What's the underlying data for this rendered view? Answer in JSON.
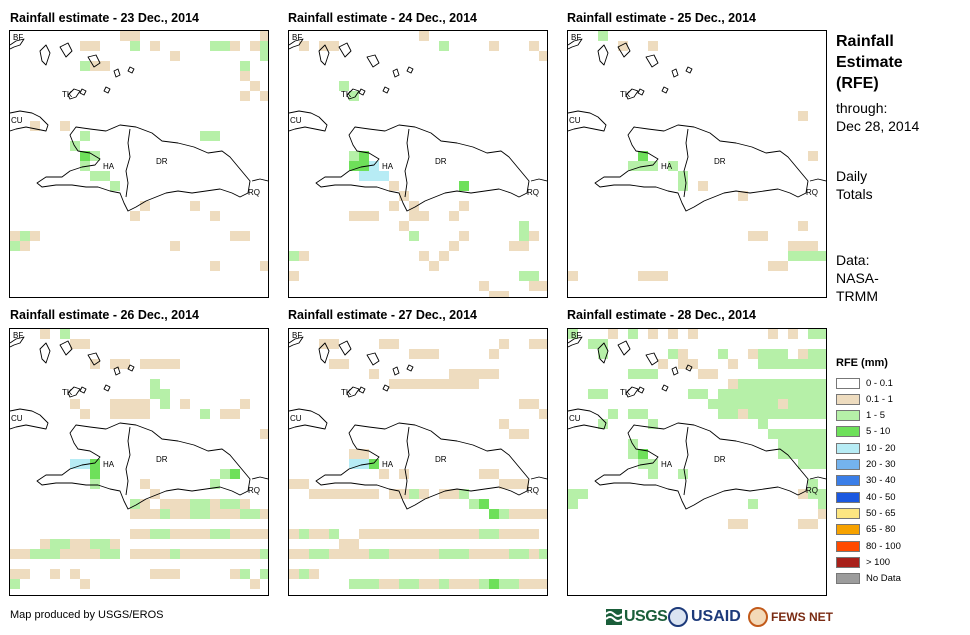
{
  "panels": [
    {
      "title": "Rainfall estimate - 23 Dec., 2014"
    },
    {
      "title": "Rainfall estimate - 24 Dec., 2014"
    },
    {
      "title": "Rainfall estimate - 25 Dec., 2014"
    },
    {
      "title": "Rainfall estimate - 26 Dec., 2014"
    },
    {
      "title": "Rainfall estimate - 27 Dec., 2014"
    },
    {
      "title": "Rainfall estimate - 28 Dec., 2014"
    }
  ],
  "map_labels": {
    "bf": "BF",
    "tk": "TK",
    "cu": "CU",
    "ha": "HA",
    "dr": "DR",
    "rq": "RQ"
  },
  "side": {
    "title_lines": [
      "Rainfall",
      "Estimate",
      "(RFE)"
    ],
    "through_lines": [
      "through:",
      "Dec 28, 2014"
    ],
    "daily_lines": [
      "Daily",
      "Totals"
    ],
    "data_lines": [
      "Data:",
      "NASA-",
      "TRMM"
    ]
  },
  "legend": {
    "title": "RFE (mm)",
    "items": [
      {
        "label": "0 - 0.1",
        "color": "#ffffff"
      },
      {
        "label": "0.1 - 1",
        "color": "#eedcbf"
      },
      {
        "label": "1 - 5",
        "color": "#b6f0a8"
      },
      {
        "label": "5 - 10",
        "color": "#6ee05a"
      },
      {
        "label": "10 - 20",
        "color": "#b7ecf5"
      },
      {
        "label": "20 - 30",
        "color": "#74b3ee"
      },
      {
        "label": "30 - 40",
        "color": "#3a7ee8"
      },
      {
        "label": "40 - 50",
        "color": "#1b58e0"
      },
      {
        "label": "50 - 65",
        "color": "#fde681"
      },
      {
        "label": "65 - 80",
        "color": "#f7a200"
      },
      {
        "label": "80 - 100",
        "color": "#ff4a00"
      },
      {
        "label": "> 100",
        "color": "#a8201a"
      },
      {
        "label": "No Data",
        "color": "#9c9c9c"
      }
    ]
  },
  "credit": "Map produced by USGS/EROS",
  "logos": {
    "usgs": "USGS",
    "usaid": "USAID",
    "fews": "FEWS NET"
  }
}
